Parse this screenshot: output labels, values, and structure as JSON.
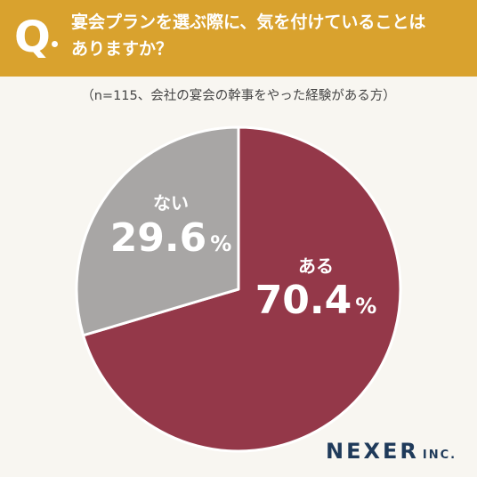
{
  "question": {
    "mark": "Q",
    "text": "宴会プランを選ぶ際に、気を付けていることは\nありますか？"
  },
  "subtitle": "（n=115、会社の宴会の幹事をやった経験がある方）",
  "chart_data": {
    "type": "pie",
    "slices": [
      {
        "label": "ある",
        "value": 70.4,
        "display": "70.4",
        "unit": "%",
        "color": "#943849"
      },
      {
        "label": "ない",
        "value": 29.6,
        "display": "29.6",
        "unit": "%",
        "color": "#a8a6a5"
      }
    ]
  },
  "brand": {
    "name": "NEXER",
    "suffix": "INC."
  }
}
